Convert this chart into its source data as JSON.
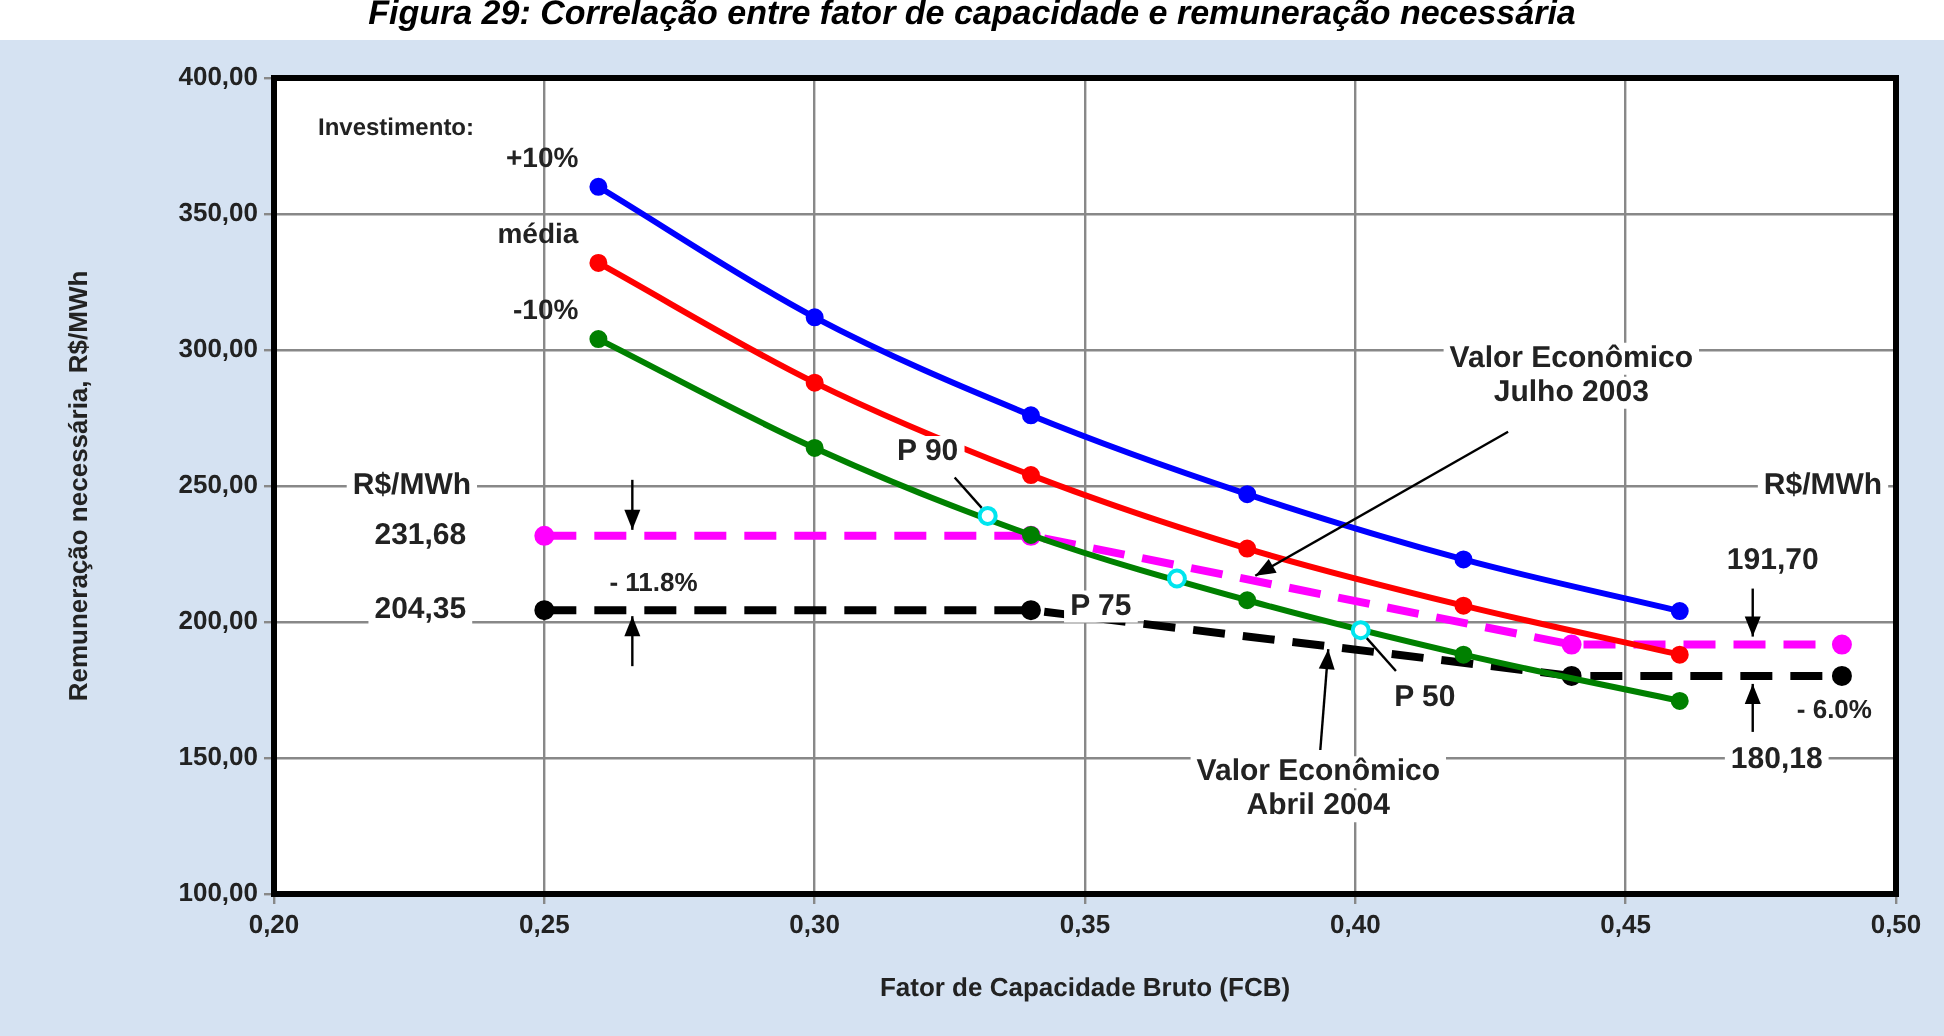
{
  "chart_data": {
    "type": "line",
    "title": "Figura 29: Correlação entre fator de capacidade e remuneração necessária",
    "xlabel": "Fator de Capacidade Bruto (FCB)",
    "ylabel": "Remuneração necessária, R$/MWh",
    "legend_title": "Investimento:",
    "xlim": [
      0.2,
      0.5
    ],
    "xticks": [
      {
        "value": 0.2,
        "label": "0,20"
      },
      {
        "value": 0.25,
        "label": "0,25"
      },
      {
        "value": 0.3,
        "label": "0,30"
      },
      {
        "value": 0.35,
        "label": "0,35"
      },
      {
        "value": 0.4,
        "label": "0,40"
      },
      {
        "value": 0.45,
        "label": "0,45"
      },
      {
        "value": 0.5,
        "label": "0,50"
      }
    ],
    "ylim": [
      100,
      400
    ],
    "yticks": [
      {
        "value": 100,
        "label": "100,00"
      },
      {
        "value": 150,
        "label": "150,00"
      },
      {
        "value": 200,
        "label": "200,00"
      },
      {
        "value": 250,
        "label": "250,00"
      },
      {
        "value": 300,
        "label": "300,00"
      },
      {
        "value": 350,
        "label": "350,00"
      },
      {
        "value": 400,
        "label": "400,00"
      }
    ],
    "grid": true,
    "marker": "circle",
    "series": [
      {
        "name": "+10%",
        "color": "#0000ff",
        "x": [
          0.26,
          0.3,
          0.34,
          0.38,
          0.42,
          0.46
        ],
        "values": [
          360,
          312,
          276,
          247,
          223,
          204
        ]
      },
      {
        "name": "média",
        "color": "#ff0000",
        "x": [
          0.26,
          0.3,
          0.34,
          0.38,
          0.42,
          0.46
        ],
        "values": [
          332,
          288,
          254,
          227,
          206,
          188
        ]
      },
      {
        "name": "-10%",
        "color": "#008000",
        "x": [
          0.26,
          0.3,
          0.34,
          0.38,
          0.42,
          0.46
        ],
        "values": [
          304,
          264,
          232,
          208,
          188,
          171
        ]
      },
      {
        "color": "#ff00ff",
        "line_style": "dashed",
        "x": [
          0.25,
          0.34,
          0.44,
          0.49
        ],
        "values": [
          231.68,
          231.68,
          191.7,
          191.7
        ]
      },
      {
        "color": "#000000",
        "line_style": "dashed",
        "x": [
          0.25,
          0.34,
          0.44,
          0.49
        ],
        "values": [
          204.35,
          204.35,
          180.18,
          180.18
        ]
      },
      {
        "type": "scatter",
        "color": "#00e5ee",
        "x": [
          0.332,
          0.367,
          0.401
        ],
        "values": [
          239,
          216,
          197
        ]
      }
    ],
    "annotations": [
      {
        "text": "P 90",
        "x": 0.332,
        "y": 239
      },
      {
        "text": "P 75",
        "x": 0.367,
        "y": 216
      },
      {
        "text": "P 50",
        "x": 0.401,
        "y": 197
      },
      {
        "text": "Valor Econômico\nJulho 2003",
        "x": 0.3815,
        "y": 217
      },
      {
        "text": "Valor Econômico\nAbril 2004",
        "x": 0.395,
        "y": 190
      },
      {
        "text": "231,68",
        "x": 0.25,
        "y": 231.68
      },
      {
        "text": "204,35",
        "x": 0.25,
        "y": 204.35
      },
      "- 11.8%",
      {
        "text": "191,70",
        "x": 0.4735,
        "y": 191.7
      },
      {
        "text": "180,18",
        "x": 0.4735,
        "y": 180.18
      },
      "- 6.0%",
      "R$/MWh",
      "R$/MWh"
    ]
  }
}
